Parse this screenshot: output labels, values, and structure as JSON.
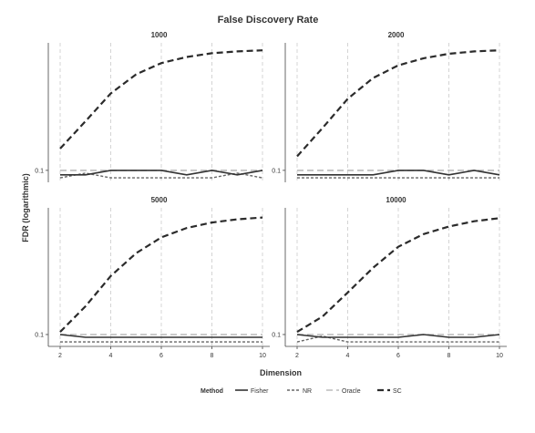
{
  "chart_data": {
    "type": "line",
    "title": "False Discovery Rate",
    "xlabel": "Dimension",
    "ylabel": "FDR (logarithmic)",
    "y_scale": "log",
    "grid": "vertical",
    "x": [
      2,
      3,
      4,
      5,
      6,
      7,
      8,
      9,
      10
    ],
    "x_ticks": [
      2,
      4,
      6,
      8,
      10
    ],
    "x_tick_labels": [
      "2",
      "4",
      "6",
      "8",
      "10"
    ],
    "y_tick_labels": [
      "0.1"
    ],
    "legend": {
      "title": "Method",
      "position": "bottom",
      "entries": [
        "Fisher",
        "NR",
        "Oracle",
        "SC"
      ]
    },
    "series_styles": {
      "Fisher": {
        "color": "#333333",
        "dash": "",
        "width": 1.6
      },
      "NR": {
        "color": "#666666",
        "dash": "3,2",
        "width": 1.4
      },
      "Oracle": {
        "color": "#bbbbbb",
        "dash": "7,4",
        "width": 1.6
      },
      "SC": {
        "color": "#2b2b2b",
        "dash": "7,4",
        "width": 2.2
      }
    },
    "panels": [
      {
        "label": "1000",
        "series": [
          {
            "name": "Fisher",
            "values": [
              0.092,
              0.092,
              0.1,
              0.1,
              0.1,
              0.092,
              0.1,
              0.092,
              0.1
            ]
          },
          {
            "name": "NR",
            "values": [
              0.087,
              0.095,
              0.087,
              0.087,
              0.087,
              0.087,
              0.087,
              0.095,
              0.087
            ]
          },
          {
            "name": "Oracle",
            "values": [
              0.1,
              0.1,
              0.1,
              0.1,
              0.1,
              0.1,
              0.1,
              0.1,
              0.1
            ]
          },
          {
            "name": "SC",
            "values": [
              0.15,
              0.25,
              0.42,
              0.6,
              0.74,
              0.83,
              0.89,
              0.92,
              0.94
            ]
          }
        ]
      },
      {
        "label": "2000",
        "series": [
          {
            "name": "Fisher",
            "values": [
              0.092,
              0.092,
              0.092,
              0.092,
              0.1,
              0.1,
              0.092,
              0.1,
              0.092
            ]
          },
          {
            "name": "NR",
            "values": [
              0.087,
              0.087,
              0.087,
              0.087,
              0.087,
              0.087,
              0.087,
              0.087,
              0.087
            ]
          },
          {
            "name": "Oracle",
            "values": [
              0.1,
              0.1,
              0.1,
              0.1,
              0.1,
              0.1,
              0.1,
              0.1,
              0.1
            ]
          },
          {
            "name": "SC",
            "values": [
              0.13,
              0.22,
              0.38,
              0.56,
              0.71,
              0.81,
              0.88,
              0.92,
              0.94
            ]
          }
        ]
      },
      {
        "label": "5000",
        "series": [
          {
            "name": "Fisher",
            "values": [
              0.1,
              0.095,
              0.095,
              0.095,
              0.095,
              0.095,
              0.095,
              0.095,
              0.095
            ]
          },
          {
            "name": "NR",
            "values": [
              0.087,
              0.087,
              0.087,
              0.087,
              0.087,
              0.087,
              0.087,
              0.087,
              0.087
            ]
          },
          {
            "name": "Oracle",
            "values": [
              0.1,
              0.1,
              0.1,
              0.1,
              0.1,
              0.1,
              0.1,
              0.1,
              0.1
            ]
          },
          {
            "name": "SC",
            "values": [
              0.105,
              0.17,
              0.3,
              0.46,
              0.62,
              0.74,
              0.82,
              0.87,
              0.9
            ]
          }
        ]
      },
      {
        "label": "10000",
        "series": [
          {
            "name": "Fisher",
            "values": [
              0.1,
              0.095,
              0.095,
              0.095,
              0.095,
              0.1,
              0.095,
              0.095,
              0.1
            ]
          },
          {
            "name": "NR",
            "values": [
              0.087,
              0.097,
              0.087,
              0.087,
              0.087,
              0.087,
              0.087,
              0.087,
              0.087
            ]
          },
          {
            "name": "Oracle",
            "values": [
              0.1,
              0.1,
              0.1,
              0.1,
              0.1,
              0.1,
              0.1,
              0.1,
              0.1
            ]
          },
          {
            "name": "SC",
            "values": [
              0.105,
              0.14,
              0.22,
              0.35,
              0.52,
              0.66,
              0.76,
              0.84,
              0.89
            ]
          }
        ]
      }
    ]
  }
}
